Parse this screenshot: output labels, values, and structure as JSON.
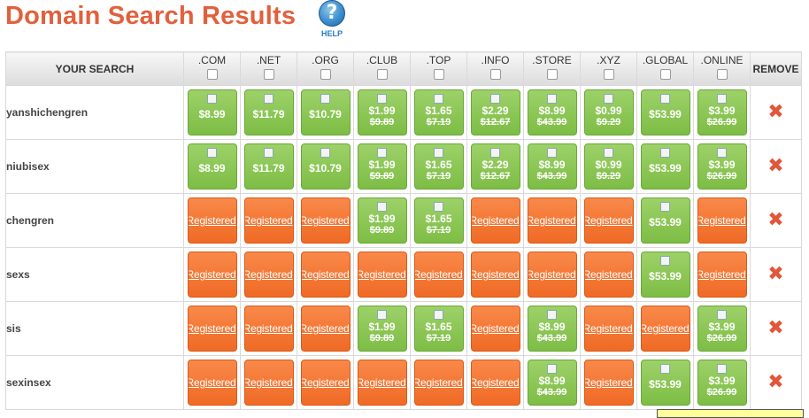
{
  "header": {
    "title": "Domain Search Results",
    "help_label": "HELP",
    "help_glyph": "?"
  },
  "table": {
    "col_search": "YOUR SEARCH",
    "col_remove": "REMOVE",
    "tlds": [
      ".COM",
      ".NET",
      ".ORG",
      ".CLUB",
      ".TOP",
      ".INFO",
      ".STORE",
      ".XYZ",
      ".GLOBAL",
      ".ONLINE"
    ],
    "rows": [
      {
        "name": "yanshichengren",
        "cells": [
          {
            "price": "$8.99"
          },
          {
            "price": "$11.79"
          },
          {
            "price": "$10.79"
          },
          {
            "price": "$1.99",
            "old": "$9.89"
          },
          {
            "price": "$1.65",
            "old": "$7.19"
          },
          {
            "price": "$2.29",
            "old": "$12.67"
          },
          {
            "price": "$8.99",
            "old": "$43.99"
          },
          {
            "price": "$0.99",
            "old": "$9.29"
          },
          {
            "price": "$53.99"
          },
          {
            "price": "$3.99",
            "old": "$26.99"
          }
        ]
      },
      {
        "name": "niubisex",
        "cells": [
          {
            "price": "$8.99"
          },
          {
            "price": "$11.79"
          },
          {
            "price": "$10.79"
          },
          {
            "price": "$1.99",
            "old": "$9.89"
          },
          {
            "price": "$1.65",
            "old": "$7.19"
          },
          {
            "price": "$2.29",
            "old": "$12.67"
          },
          {
            "price": "$8.99",
            "old": "$43.99"
          },
          {
            "price": "$0.99",
            "old": "$9.29"
          },
          {
            "price": "$53.99"
          },
          {
            "price": "$3.99",
            "old": "$26.99"
          }
        ]
      },
      {
        "name": "chengren",
        "cells": [
          {
            "reg": "Registered"
          },
          {
            "reg": "Registered"
          },
          {
            "reg": "Registered"
          },
          {
            "price": "$1.99",
            "old": "$9.89"
          },
          {
            "price": "$1.65",
            "old": "$7.19"
          },
          {
            "reg": "Registered"
          },
          {
            "reg": "Registered"
          },
          {
            "reg": "Registered"
          },
          {
            "price": "$53.99"
          },
          {
            "reg": "Registered"
          }
        ]
      },
      {
        "name": "sexs",
        "cells": [
          {
            "reg": "Registered"
          },
          {
            "reg": "Registered"
          },
          {
            "reg": "Registered"
          },
          {
            "reg": "Registered"
          },
          {
            "reg": "Registered"
          },
          {
            "reg": "Registered"
          },
          {
            "reg": "Registered"
          },
          {
            "reg": "Registered"
          },
          {
            "price": "$53.99"
          },
          {
            "reg": "Registered"
          }
        ]
      },
      {
        "name": "sis",
        "cells": [
          {
            "reg": "Registered"
          },
          {
            "reg": "Registered"
          },
          {
            "reg": "Registered"
          },
          {
            "price": "$1.99",
            "old": "$9.89"
          },
          {
            "price": "$1.65",
            "old": "$7.19"
          },
          {
            "reg": "Registered"
          },
          {
            "price": "$8.99",
            "old": "$43.99"
          },
          {
            "reg": "Registered"
          },
          {
            "reg": "Registered"
          },
          {
            "price": "$3.99",
            "old": "$26.99"
          }
        ]
      },
      {
        "name": "sexinsex",
        "cells": [
          {
            "reg": "Registered"
          },
          {
            "reg": "Registered"
          },
          {
            "reg": "Registered"
          },
          {
            "reg": "Registered"
          },
          {
            "reg": "Registered"
          },
          {
            "reg": "Registered"
          },
          {
            "price": "$8.99",
            "old": "$43.99"
          },
          {
            "reg": "Registered"
          },
          {
            "price": "$53.99"
          },
          {
            "price": "$3.99",
            "old": "$26.99"
          }
        ]
      }
    ]
  },
  "remove_glyph": "✖",
  "colors": {
    "title": "#e2603c",
    "available": "#8cc756",
    "registered": "#f47a36",
    "remove": "#e2563a",
    "help": "#2a7ac0"
  }
}
